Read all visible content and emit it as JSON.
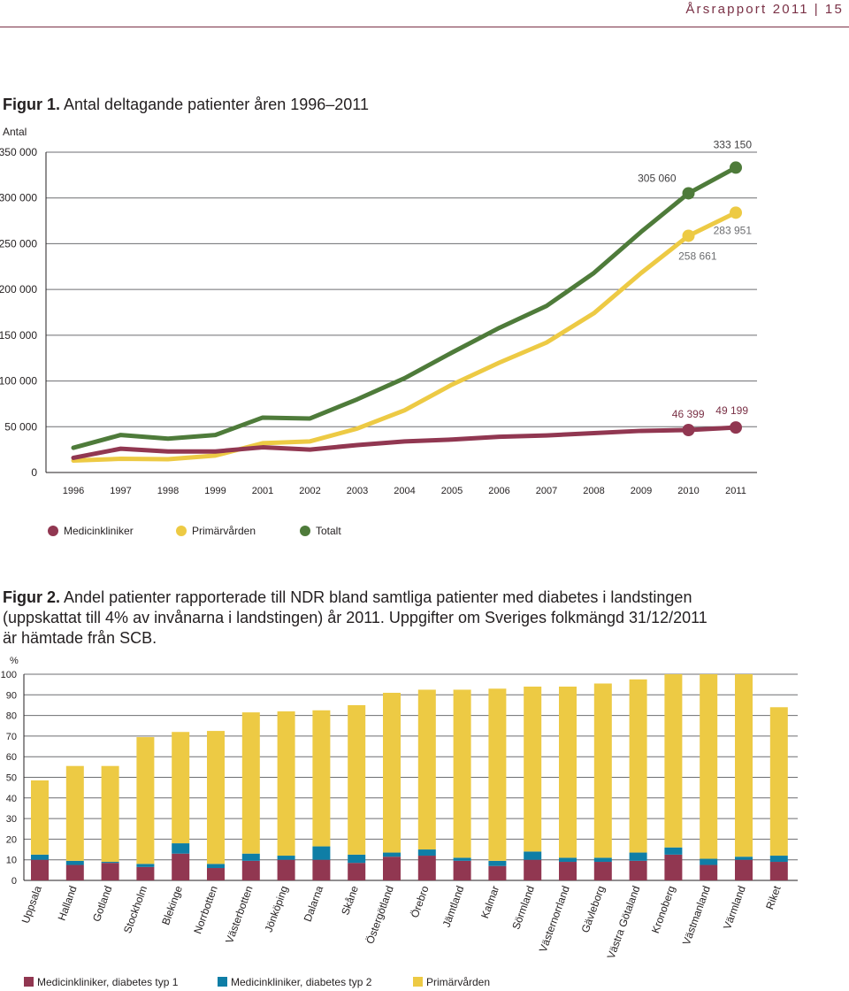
{
  "header": {
    "report": "Årsrapport 2011",
    "separator": "|",
    "page": "15"
  },
  "figure1": {
    "label": "Figur 1.",
    "caption": "Antal deltagande patienter åren 1996–2011",
    "chart_data": {
      "type": "line",
      "title": "Antal deltagande patienter åren 1996–2011",
      "ylabel": "Antal",
      "xlabel": "",
      "ylim": [
        0,
        350000
      ],
      "grid": true,
      "yticks": [
        0,
        50000,
        100000,
        150000,
        200000,
        250000,
        300000,
        350000
      ],
      "ytick_labels": [
        "0",
        "50 000",
        "100 000",
        "150 000",
        "200 000",
        "250 000",
        "300 000",
        "350 000"
      ],
      "categories": [
        "1996",
        "1997",
        "1998",
        "1999",
        "2001",
        "2002",
        "2003",
        "2004",
        "2005",
        "2006",
        "2007",
        "2008",
        "2009",
        "2010",
        "2011"
      ],
      "series": [
        {
          "name": "Totalt",
          "color": "#4e7b3a",
          "values": [
            27000,
            41000,
            37000,
            41000,
            60000,
            59000,
            80000,
            103000,
            131000,
            158000,
            182000,
            218000,
            263000,
            305060,
            333150
          ]
        },
        {
          "name": "Primärvården",
          "color": "#edca44",
          "values": [
            13000,
            15000,
            14500,
            18500,
            32000,
            34000,
            48000,
            68000,
            96000,
            120000,
            142000,
            174000,
            218000,
            258661,
            283951
          ]
        },
        {
          "name": "Medicinkliniker",
          "color": "#913751",
          "values": [
            16000,
            26000,
            23000,
            23000,
            27500,
            25000,
            30000,
            34000,
            36000,
            39000,
            40500,
            43000,
            45500,
            46399,
            49199
          ]
        }
      ],
      "annotations": [
        {
          "series": "Totalt",
          "category": "2010",
          "text": "305 060"
        },
        {
          "series": "Totalt",
          "category": "2011",
          "text": "333 150"
        },
        {
          "series": "Primärvården",
          "category": "2010",
          "text": "258 661"
        },
        {
          "series": "Primärvården",
          "category": "2011",
          "text": "283 951"
        },
        {
          "series": "Medicinkliniker",
          "category": "2010",
          "text": "46 399"
        },
        {
          "series": "Medicinkliniker",
          "category": "2011",
          "text": "49 199"
        }
      ],
      "legend": [
        {
          "name": "Medicinkliniker",
          "color": "#913751"
        },
        {
          "name": "Primärvården",
          "color": "#edca44"
        },
        {
          "name": "Totalt",
          "color": "#4e7b3a"
        }
      ]
    }
  },
  "figure2": {
    "label": "Figur 2.",
    "caption": "Andel patienter rapporterade till NDR bland samtliga patienter med diabetes i landstingen (uppskattat till 4% av invånarna i landstingen) år 2011. Uppgifter om Sveriges folkmängd 31/12/2011 är hämtade från SCB.",
    "chart_data": {
      "type": "bar",
      "stacked": true,
      "title": "Andel patienter rapporterade till NDR år 2011",
      "ylabel": "%",
      "xlabel": "",
      "ylim": [
        0,
        100
      ],
      "grid": true,
      "yticks": [
        0,
        10,
        20,
        30,
        40,
        50,
        60,
        70,
        80,
        90,
        100
      ],
      "categories": [
        "Uppsala",
        "Halland",
        "Gotland",
        "Stockholm",
        "Blekinge",
        "Norrbotten",
        "Västerbotten",
        "Jönköping",
        "Dalarna",
        "Skåne",
        "Östergötland",
        "Örebro",
        "Jämtland",
        "Kalmar",
        "Sörmland",
        "Västernorrland",
        "Gävleborg",
        "Västra Götaland",
        "Kronoberg",
        "Västmanland",
        "Värmland",
        "Riket"
      ],
      "series": [
        {
          "name": "Medicinkliniker, diabetes typ 1",
          "color": "#913751",
          "values": [
            10,
            7.5,
            8.5,
            6.5,
            13,
            6,
            9.5,
            10,
            10,
            8.5,
            11.5,
            12,
            9.5,
            7,
            10,
            9,
            9,
            9.5,
            12.5,
            7.5,
            10,
            9
          ]
        },
        {
          "name": "Medicinkliniker, diabetes typ 2",
          "color": "#0f7ea6",
          "values": [
            2.5,
            2,
            0.5,
            1.5,
            5,
            2,
            3.5,
            2,
            6.5,
            4,
            2,
            3,
            1.5,
            2.5,
            4,
            2,
            2,
            4,
            3.5,
            3,
            1.5,
            3
          ]
        },
        {
          "name": "Primärvården",
          "color": "#edca44",
          "values": [
            36,
            46,
            46.5,
            61.5,
            54,
            64.5,
            68.5,
            70,
            66,
            72.5,
            77.5,
            77.5,
            81.5,
            83.5,
            80,
            83,
            84.5,
            84,
            84,
            89.5,
            88.5,
            72
          ]
        }
      ],
      "legend": [
        {
          "name": "Medicinkliniker, diabetes typ 1",
          "color": "#913751"
        },
        {
          "name": "Medicinkliniker, diabetes typ 2",
          "color": "#0f7ea6"
        },
        {
          "name": "Primärvården",
          "color": "#edca44"
        }
      ]
    }
  }
}
